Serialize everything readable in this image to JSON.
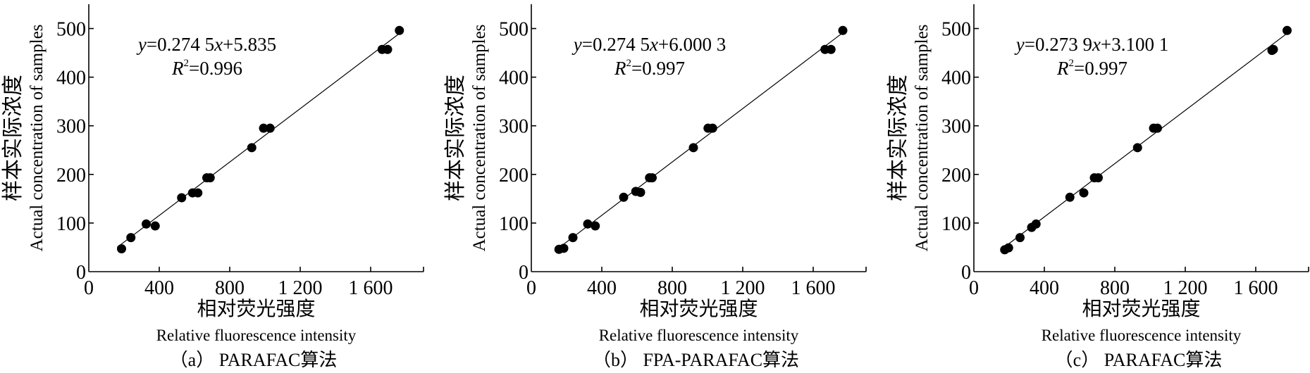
{
  "chart_data": [
    {
      "type": "scatter",
      "caption": "（a） PARAFAC算法",
      "equation": {
        "prefix": "y",
        "text": "=0.274 5",
        "var": "x",
        "rest": "+5.835"
      },
      "r2_text": "=0.996",
      "r2_label": "R",
      "fit": {
        "slope": 0.2745,
        "intercept": 5.835
      },
      "xlabel_cn": "相对荧光强度",
      "xlabel_en": "Relative fluorescence intensity",
      "ylabel_cn": "样本实际浓度",
      "ylabel_en": "Actual concentration of samples",
      "xlim": [
        0,
        1900
      ],
      "ylim": [
        0,
        550
      ],
      "xticks": [
        0,
        400,
        800,
        1200,
        1600
      ],
      "xtick_labels": [
        "0",
        "400",
        "800",
        "1 200",
        "1 600"
      ],
      "yticks": [
        0,
        100,
        200,
        300,
        400,
        500
      ],
      "ytick_labels": [
        "0",
        "100",
        "200",
        "300",
        "400",
        "500"
      ],
      "grid": false,
      "x": [
        186,
        239,
        326,
        377,
        527,
        589,
        619,
        670,
        689,
        925,
        992,
        1029,
        1665,
        1696,
        1763
      ],
      "y": [
        47,
        70,
        98,
        94,
        152,
        162,
        162,
        193,
        193,
        255,
        295,
        295,
        457,
        457,
        496
      ]
    },
    {
      "type": "scatter",
      "caption": "（b） FPA-PARAFAC算法",
      "equation": {
        "prefix": "y",
        "text": "=0.274 5",
        "var": "x",
        "rest": "+6.000 3"
      },
      "r2_text": "=0.997",
      "r2_label": "R",
      "fit": {
        "slope": 0.2745,
        "intercept": 6.0003
      },
      "xlabel_cn": "相对荧光强度",
      "xlabel_en": "Relative fluorescence intensity",
      "ylabel_cn": "样本实际浓度",
      "ylabel_en": "Actual concentration of samples",
      "xlim": [
        0,
        1900
      ],
      "ylim": [
        0,
        550
      ],
      "xticks": [
        0,
        400,
        800,
        1200,
        1600
      ],
      "xtick_labels": [
        "0",
        "400",
        "800",
        "1 200",
        "1 600"
      ],
      "yticks": [
        0,
        100,
        200,
        300,
        400,
        500
      ],
      "ytick_labels": [
        "0",
        "100",
        "200",
        "300",
        "400",
        "500"
      ],
      "grid": false,
      "x": [
        157,
        184,
        236,
        320,
        363,
        524,
        593,
        620,
        671,
        686,
        920,
        1003,
        1029,
        1667,
        1701,
        1768
      ],
      "y": [
        46,
        48,
        70,
        98,
        94,
        153,
        165,
        163,
        193,
        193,
        255,
        295,
        295,
        457,
        457,
        496
      ]
    },
    {
      "type": "scatter",
      "caption": "（c） PARAFAC算法",
      "equation": {
        "prefix": "y",
        "text": "=0.273 9",
        "var": "x",
        "rest": "+3.100 1"
      },
      "r2_text": "=0.997",
      "r2_label": "R",
      "fit": {
        "slope": 0.2739,
        "intercept": 3.1001
      },
      "xlabel_cn": "相对荧光强度",
      "xlabel_en": "Relative fluorescence intensity",
      "ylabel_cn": "样本实际浓度",
      "ylabel_en": "Actual concentration of samples",
      "xlim": [
        0,
        1900
      ],
      "ylim": [
        0,
        550
      ],
      "xticks": [
        0,
        400,
        800,
        1200,
        1600
      ],
      "xtick_labels": [
        "0",
        "400",
        "800",
        "1 200",
        "1 600"
      ],
      "yticks": [
        0,
        100,
        200,
        300,
        400,
        500
      ],
      "ytick_labels": [
        "0",
        "100",
        "200",
        "300",
        "400",
        "500"
      ],
      "grid": false,
      "x": [
        175,
        197,
        262,
        328,
        353,
        545,
        624,
        684,
        706,
        929,
        1020,
        1042,
        1692,
        1700,
        1778
      ],
      "y": [
        45,
        49,
        70,
        91,
        98,
        153,
        162,
        193,
        193,
        255,
        295,
        295,
        455,
        457,
        496
      ]
    }
  ]
}
